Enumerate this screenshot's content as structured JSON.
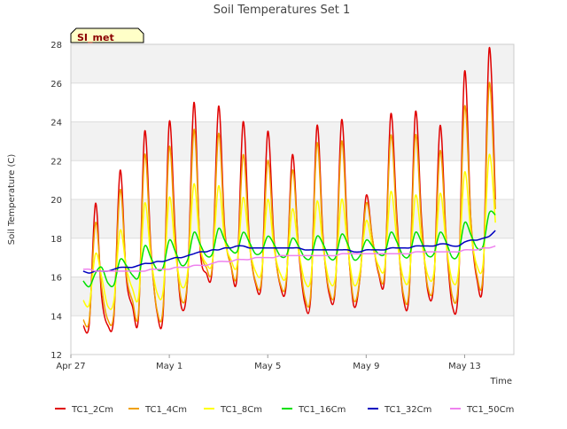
{
  "chart_data": {
    "type": "line",
    "title": "Soil Temperatures Set 1",
    "xlabel": "Time",
    "ylabel": "Soil Temperature (C)",
    "station_label": "SI_met",
    "xlim": [
      "2024-04-27",
      "2024-05-15"
    ],
    "ylim": [
      12,
      28
    ],
    "xticks": [
      {
        "date": "2024-04-27",
        "label": "Apr 27"
      },
      {
        "date": "2024-05-01",
        "label": "May 1"
      },
      {
        "date": "2024-05-05",
        "label": "May 5"
      },
      {
        "date": "2024-05-09",
        "label": "May 9"
      },
      {
        "date": "2024-05-13",
        "label": "May 13"
      }
    ],
    "yticks": [
      12,
      14,
      16,
      18,
      20,
      22,
      24,
      26,
      28
    ],
    "grid": true,
    "shaded_bands": [
      [
        14,
        16
      ],
      [
        18,
        20
      ],
      [
        22,
        24
      ],
      [
        26,
        28
      ]
    ],
    "legend_position": "bottom",
    "x_start": "2024-04-27T12:00",
    "interval_hours": 6,
    "series": [
      {
        "name": "TC1_2Cm",
        "color": "#e00000",
        "values": [
          13.5,
          13.6,
          19.8,
          15.0,
          13.5,
          14.0,
          21.5,
          16.0,
          14.5,
          14.0,
          23.5,
          17.5,
          14.2,
          14.2,
          24.0,
          18.0,
          14.4,
          16.0,
          25.0,
          17.5,
          16.2,
          16.5,
          24.8,
          18.5,
          16.6,
          16.0,
          24.0,
          18.0,
          15.7,
          15.8,
          23.5,
          18.0,
          15.6,
          15.6,
          22.3,
          17.5,
          14.7,
          15.0,
          23.8,
          18.0,
          15.1,
          15.5,
          24.1,
          18.0,
          14.5,
          16.0,
          20.2,
          18.0,
          16.2,
          16.0,
          24.4,
          19.0,
          15.0,
          15.2,
          24.5,
          19.0,
          15.3,
          15.7,
          23.8,
          18.0,
          14.5,
          15.5,
          26.6,
          19.0,
          15.9,
          16.0,
          27.8,
          20.0
        ]
      },
      {
        "name": "TC1_4Cm",
        "color": "#f0a000",
        "values": [
          13.8,
          13.8,
          18.8,
          15.5,
          13.8,
          14.2,
          20.5,
          16.2,
          14.8,
          14.2,
          22.3,
          17.3,
          14.3,
          14.5,
          22.7,
          17.6,
          14.8,
          16.0,
          23.6,
          17.8,
          16.5,
          16.6,
          23.4,
          18.3,
          16.6,
          16.2,
          22.3,
          17.8,
          15.8,
          15.9,
          22.0,
          17.8,
          15.7,
          15.8,
          21.5,
          17.6,
          15.0,
          15.2,
          22.9,
          17.8,
          15.3,
          15.6,
          23.0,
          17.8,
          14.8,
          16.0,
          19.8,
          18.0,
          16.3,
          16.2,
          23.3,
          18.6,
          15.2,
          15.4,
          23.3,
          18.6,
          15.5,
          15.8,
          22.5,
          18.0,
          15.0,
          15.8,
          24.8,
          19.0,
          16.1,
          16.2,
          26.0,
          19.5
        ]
      },
      {
        "name": "TC1_8Cm",
        "color": "#ffff00",
        "values": [
          14.8,
          14.6,
          17.2,
          16.0,
          14.5,
          14.8,
          18.4,
          16.5,
          15.4,
          15.0,
          19.8,
          17.0,
          15.2,
          15.3,
          20.1,
          17.2,
          15.5,
          16.3,
          20.8,
          17.6,
          16.7,
          16.8,
          20.7,
          17.9,
          16.9,
          16.6,
          20.1,
          17.6,
          16.3,
          16.3,
          20.0,
          17.5,
          16.2,
          16.1,
          19.5,
          17.4,
          15.8,
          15.9,
          19.9,
          17.5,
          15.8,
          16.0,
          20.0,
          17.5,
          15.6,
          16.3,
          18.9,
          17.6,
          16.6,
          16.5,
          20.4,
          17.9,
          16.0,
          16.0,
          20.2,
          17.9,
          16.1,
          16.2,
          20.3,
          17.7,
          15.8,
          16.3,
          21.4,
          18.3,
          16.6,
          16.7,
          22.3,
          18.8
        ]
      },
      {
        "name": "TC1_16Cm",
        "color": "#00e000",
        "values": [
          15.8,
          15.5,
          16.2,
          16.5,
          15.7,
          15.6,
          16.9,
          16.6,
          16.1,
          16.0,
          17.6,
          17.0,
          16.4,
          16.5,
          17.9,
          17.3,
          16.6,
          16.9,
          18.3,
          17.7,
          17.1,
          17.2,
          18.5,
          17.9,
          17.4,
          17.3,
          18.3,
          17.8,
          17.2,
          17.3,
          18.1,
          17.7,
          17.1,
          17.1,
          18.0,
          17.6,
          17.0,
          17.0,
          18.1,
          17.7,
          17.0,
          17.0,
          18.2,
          17.7,
          16.9,
          17.1,
          17.9,
          17.6,
          17.2,
          17.2,
          18.3,
          17.8,
          17.1,
          17.1,
          18.3,
          17.8,
          17.1,
          17.2,
          18.3,
          17.8,
          17.0,
          17.2,
          18.8,
          18.2,
          17.5,
          17.6,
          19.3,
          19.2
        ]
      },
      {
        "name": "TC1_32Cm",
        "color": "#0000c0",
        "values": [
          16.3,
          16.2,
          16.3,
          16.3,
          16.3,
          16.4,
          16.5,
          16.5,
          16.5,
          16.6,
          16.7,
          16.7,
          16.8,
          16.8,
          16.9,
          17.0,
          17.0,
          17.1,
          17.2,
          17.3,
          17.3,
          17.4,
          17.4,
          17.5,
          17.5,
          17.6,
          17.6,
          17.5,
          17.5,
          17.5,
          17.5,
          17.5,
          17.5,
          17.5,
          17.5,
          17.5,
          17.4,
          17.4,
          17.4,
          17.4,
          17.4,
          17.4,
          17.4,
          17.4,
          17.3,
          17.3,
          17.4,
          17.4,
          17.4,
          17.4,
          17.5,
          17.5,
          17.5,
          17.5,
          17.6,
          17.6,
          17.6,
          17.6,
          17.7,
          17.7,
          17.6,
          17.6,
          17.8,
          17.9,
          17.9,
          18.0,
          18.1,
          18.4
        ]
      },
      {
        "name": "TC1_50Cm",
        "color": "#ee82ee",
        "values": [
          16.4,
          16.4,
          16.3,
          16.3,
          16.3,
          16.3,
          16.3,
          16.3,
          16.3,
          16.3,
          16.3,
          16.4,
          16.4,
          16.4,
          16.4,
          16.5,
          16.5,
          16.5,
          16.6,
          16.6,
          16.6,
          16.7,
          16.8,
          16.8,
          16.8,
          16.9,
          16.9,
          16.9,
          17.0,
          17.0,
          17.0,
          17.0,
          17.1,
          17.1,
          17.1,
          17.1,
          17.1,
          17.1,
          17.1,
          17.1,
          17.1,
          17.1,
          17.2,
          17.2,
          17.2,
          17.2,
          17.2,
          17.2,
          17.2,
          17.2,
          17.2,
          17.2,
          17.2,
          17.2,
          17.3,
          17.3,
          17.3,
          17.3,
          17.3,
          17.3,
          17.3,
          17.3,
          17.4,
          17.4,
          17.4,
          17.5,
          17.5,
          17.6
        ]
      }
    ]
  }
}
